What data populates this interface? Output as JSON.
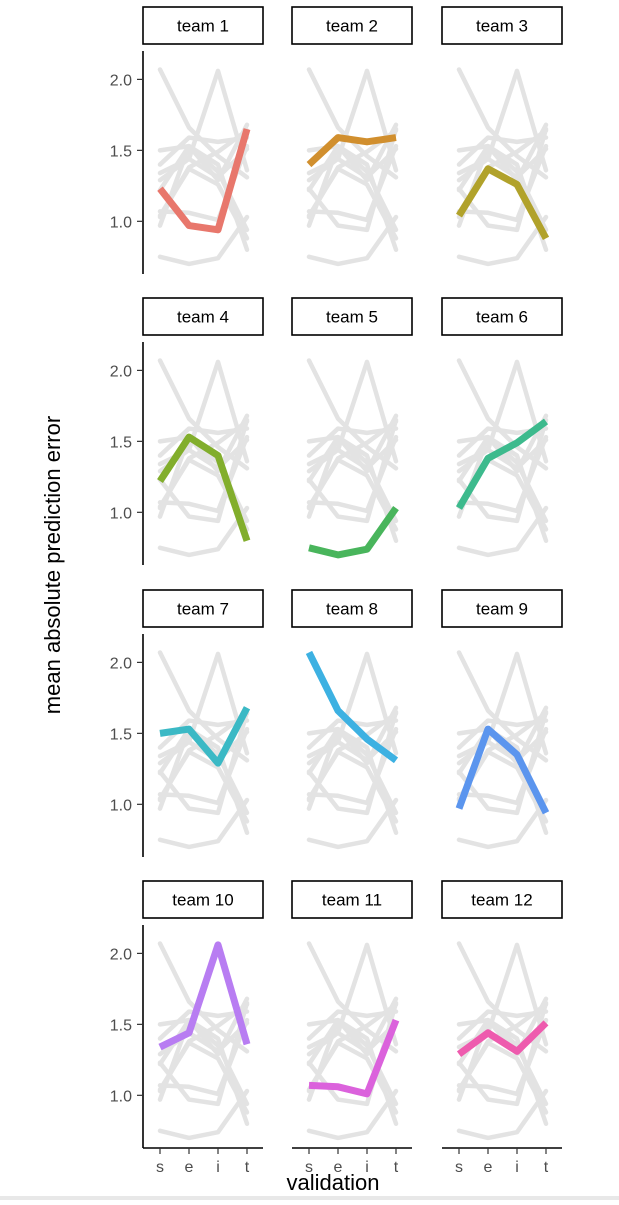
{
  "chart_data": {
    "type": "line",
    "xlabel": "validation",
    "ylabel": "mean absolute prediction error",
    "x": [
      "s",
      "e",
      "i",
      "t"
    ],
    "yticks": [
      1.0,
      1.5,
      2.0
    ],
    "ytick_labels": [
      "1.0",
      "1.5",
      "2.0"
    ],
    "ylim": [
      0.65,
      2.2
    ],
    "grid": false,
    "legend": "none",
    "background_series_color": "#e3e3e3",
    "series": [
      {
        "name": "team 1",
        "values": [
          1.23,
          0.97,
          0.94,
          1.65
        ],
        "color": "#E8776C"
      },
      {
        "name": "team 2",
        "values": [
          1.4,
          1.59,
          1.56,
          1.59
        ],
        "color": "#D18F2E"
      },
      {
        "name": "team 3",
        "values": [
          1.04,
          1.37,
          1.26,
          0.88
        ],
        "color": "#B1A22B"
      },
      {
        "name": "team 4",
        "values": [
          1.22,
          1.53,
          1.4,
          0.8
        ],
        "color": "#82AE2C"
      },
      {
        "name": "team 5",
        "values": [
          0.75,
          0.7,
          0.74,
          1.03
        ],
        "color": "#49B55C"
      },
      {
        "name": "team 6",
        "values": [
          1.03,
          1.38,
          1.49,
          1.64
        ],
        "color": "#3DBA8D"
      },
      {
        "name": "team 7",
        "values": [
          1.5,
          1.53,
          1.29,
          1.68
        ],
        "color": "#3BB9C5"
      },
      {
        "name": "team 8",
        "values": [
          2.07,
          1.66,
          1.46,
          1.31
        ],
        "color": "#3DB1E2"
      },
      {
        "name": "team 9",
        "values": [
          0.97,
          1.53,
          1.35,
          0.94
        ],
        "color": "#5B95EE"
      },
      {
        "name": "team 10",
        "values": [
          1.34,
          1.44,
          2.06,
          1.36
        ],
        "color": "#B87DF2"
      },
      {
        "name": "team 11",
        "values": [
          1.07,
          1.06,
          1.01,
          1.53
        ],
        "color": "#DB62DC"
      },
      {
        "name": "team 12",
        "values": [
          1.29,
          1.44,
          1.31,
          1.51
        ],
        "color": "#EE5BAE"
      }
    ]
  }
}
